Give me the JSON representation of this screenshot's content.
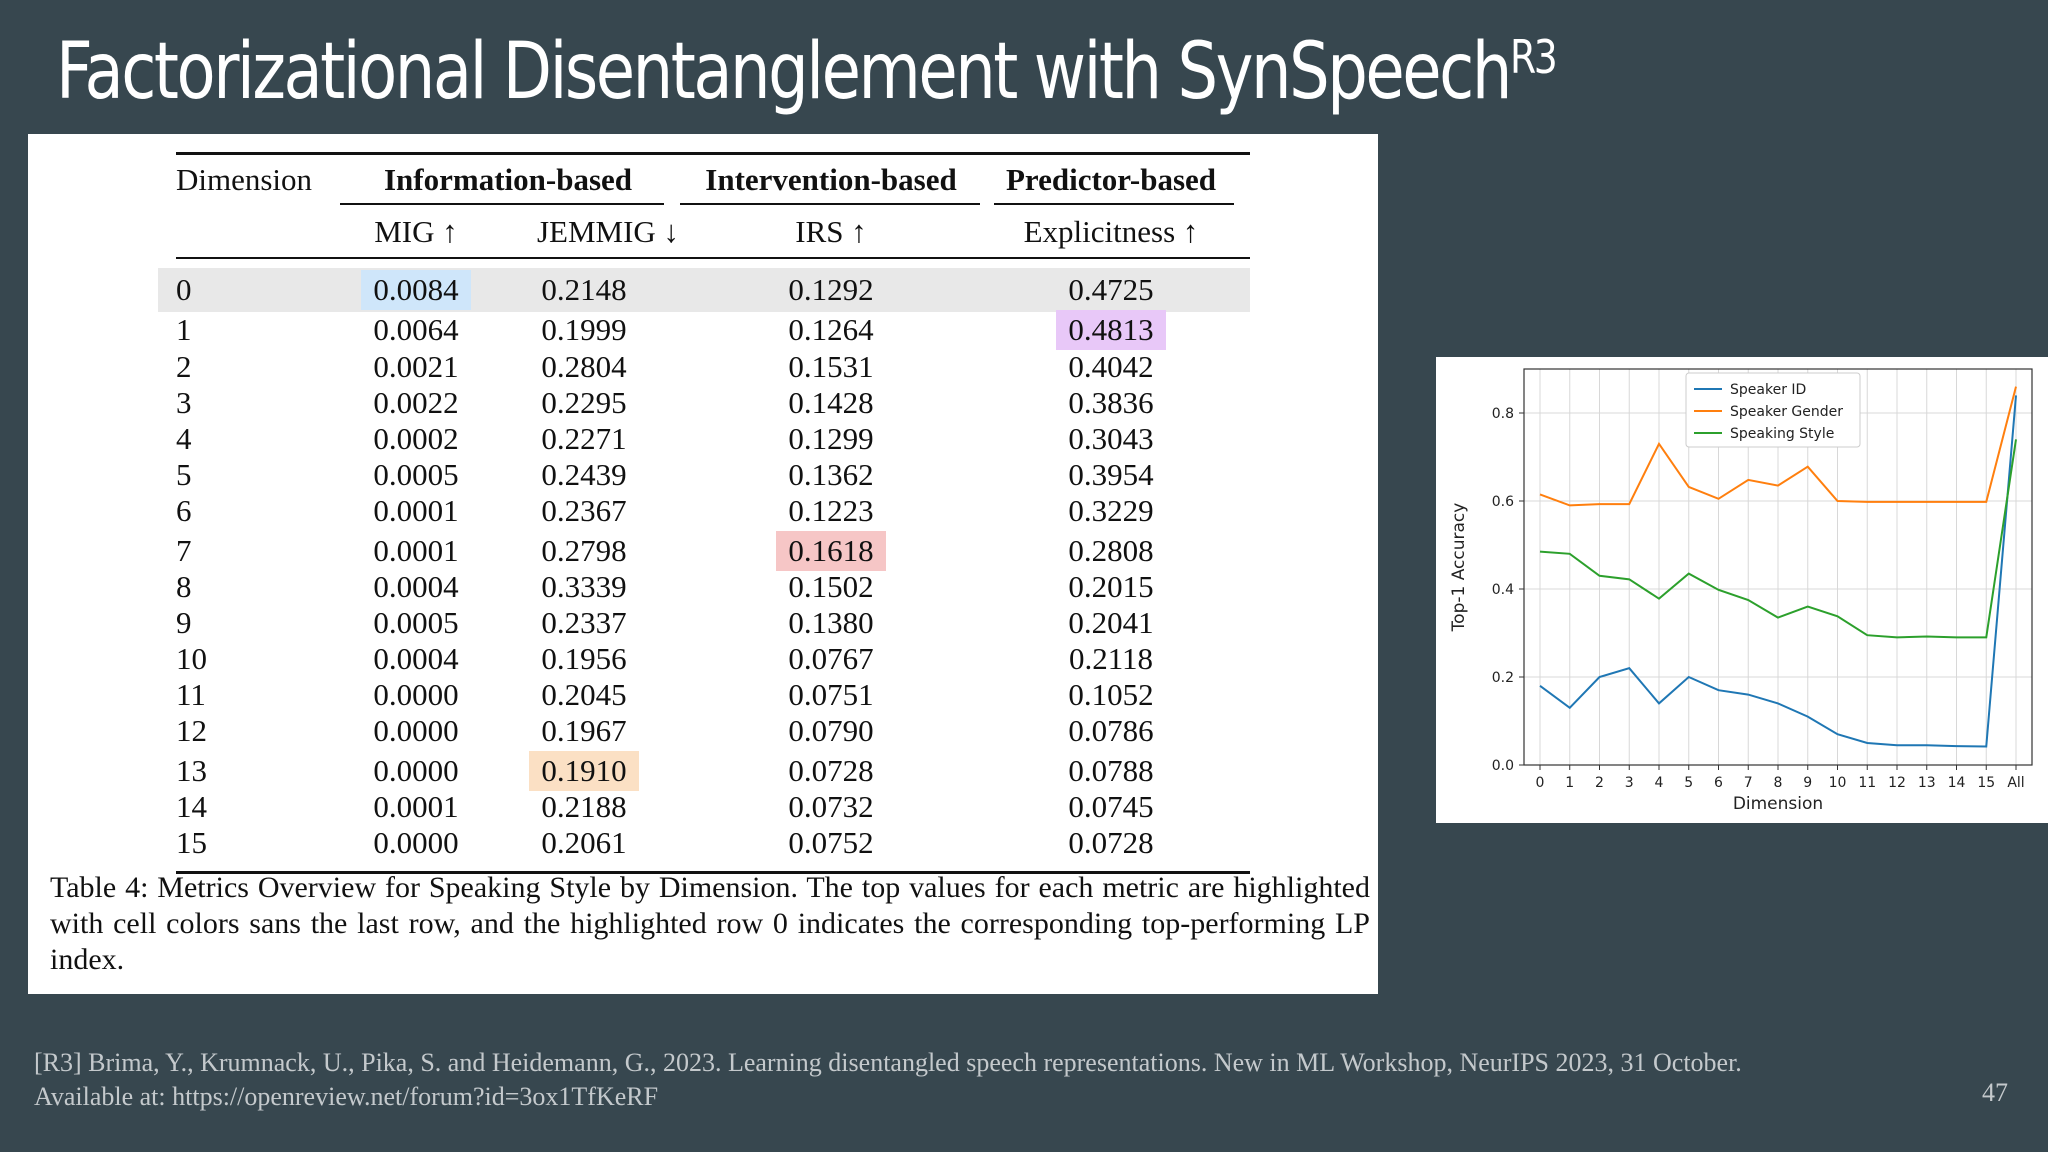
{
  "slide": {
    "title": "Factorizational Disentanglement with SynSpeech",
    "title_superscript": "R3",
    "reference_line1": "[R3] Brima, Y., Krumnack, U., Pika, S. and Heidemann, G., 2023. Learning disentangled speech representations. New in ML Workshop, NeurIPS 2023, 31 October.",
    "reference_line2": "Available at: https://openreview.net/forum?id=3ox1TfKeRF",
    "page_number": "47"
  },
  "table": {
    "dimension_header": "Dimension",
    "groups": [
      "Information-based",
      "Intervention-based",
      "Predictor-based"
    ],
    "metrics": [
      "MIG ↑",
      "JEMMIG ↓",
      "IRS ↑",
      "Explicitness ↑"
    ],
    "rows": [
      [
        "0",
        "0.0084",
        "0.2148",
        "0.1292",
        "0.4725"
      ],
      [
        "1",
        "0.0064",
        "0.1999",
        "0.1264",
        "0.4813"
      ],
      [
        "2",
        "0.0021",
        "0.2804",
        "0.1531",
        "0.4042"
      ],
      [
        "3",
        "0.0022",
        "0.2295",
        "0.1428",
        "0.3836"
      ],
      [
        "4",
        "0.0002",
        "0.2271",
        "0.1299",
        "0.3043"
      ],
      [
        "5",
        "0.0005",
        "0.2439",
        "0.1362",
        "0.3954"
      ],
      [
        "6",
        "0.0001",
        "0.2367",
        "0.1223",
        "0.3229"
      ],
      [
        "7",
        "0.0001",
        "0.2798",
        "0.1618",
        "0.2808"
      ],
      [
        "8",
        "0.0004",
        "0.3339",
        "0.1502",
        "0.2015"
      ],
      [
        "9",
        "0.0005",
        "0.2337",
        "0.1380",
        "0.2041"
      ],
      [
        "10",
        "0.0004",
        "0.1956",
        "0.0767",
        "0.2118"
      ],
      [
        "11",
        "0.0000",
        "0.2045",
        "0.0751",
        "0.1052"
      ],
      [
        "12",
        "0.0000",
        "0.1967",
        "0.0790",
        "0.0786"
      ],
      [
        "13",
        "0.0000",
        "0.1910",
        "0.0728",
        "0.0788"
      ],
      [
        "14",
        "0.0001",
        "0.2188",
        "0.0732",
        "0.0745"
      ],
      [
        "15",
        "0.0000",
        "0.2061",
        "0.0752",
        "0.0728"
      ]
    ],
    "highlights": [
      {
        "row": 0,
        "col": 1,
        "color": "#cfe6fa"
      },
      {
        "row": 1,
        "col": 4,
        "color": "#e8c8f8"
      },
      {
        "row": 7,
        "col": 3,
        "color": "#f6c6c6"
      },
      {
        "row": 13,
        "col": 2,
        "color": "#fbe0c4"
      }
    ],
    "highlighted_row": 0,
    "highlighted_row_color": "#e8e8e8",
    "caption": "Table 4: Metrics Overview for Speaking Style by Dimension. The top values for each metric are highlighted with cell colors sans the last row, and the highlighted row 0 indicates the corresponding top-performing LP index."
  },
  "chart_data": {
    "type": "line",
    "title": "",
    "xlabel": "Dimension",
    "ylabel": "Top-1 Accuracy",
    "x": [
      "0",
      "1",
      "2",
      "3",
      "4",
      "5",
      "6",
      "7",
      "8",
      "9",
      "10",
      "11",
      "12",
      "13",
      "14",
      "15",
      "All"
    ],
    "ylim": [
      0.0,
      0.9
    ],
    "yticks": [
      0.0,
      0.2,
      0.4,
      0.6,
      0.8
    ],
    "grid": true,
    "legend_position": "top-center",
    "series": [
      {
        "name": "Speaker ID",
        "color": "#1f77b4",
        "values": [
          0.18,
          0.13,
          0.2,
          0.22,
          0.14,
          0.2,
          0.17,
          0.16,
          0.14,
          0.11,
          0.07,
          0.05,
          0.045,
          0.045,
          0.043,
          0.042,
          0.84
        ]
      },
      {
        "name": "Speaker Gender",
        "color": "#ff7f0e",
        "values": [
          0.615,
          0.59,
          0.593,
          0.593,
          0.73,
          0.632,
          0.605,
          0.648,
          0.635,
          0.678,
          0.6,
          0.598,
          0.598,
          0.598,
          0.598,
          0.598,
          0.86
        ]
      },
      {
        "name": "Speaking Style",
        "color": "#2ca02c",
        "values": [
          0.485,
          0.48,
          0.43,
          0.422,
          0.378,
          0.435,
          0.398,
          0.375,
          0.335,
          0.36,
          0.338,
          0.295,
          0.29,
          0.292,
          0.29,
          0.29,
          0.74
        ]
      }
    ]
  }
}
